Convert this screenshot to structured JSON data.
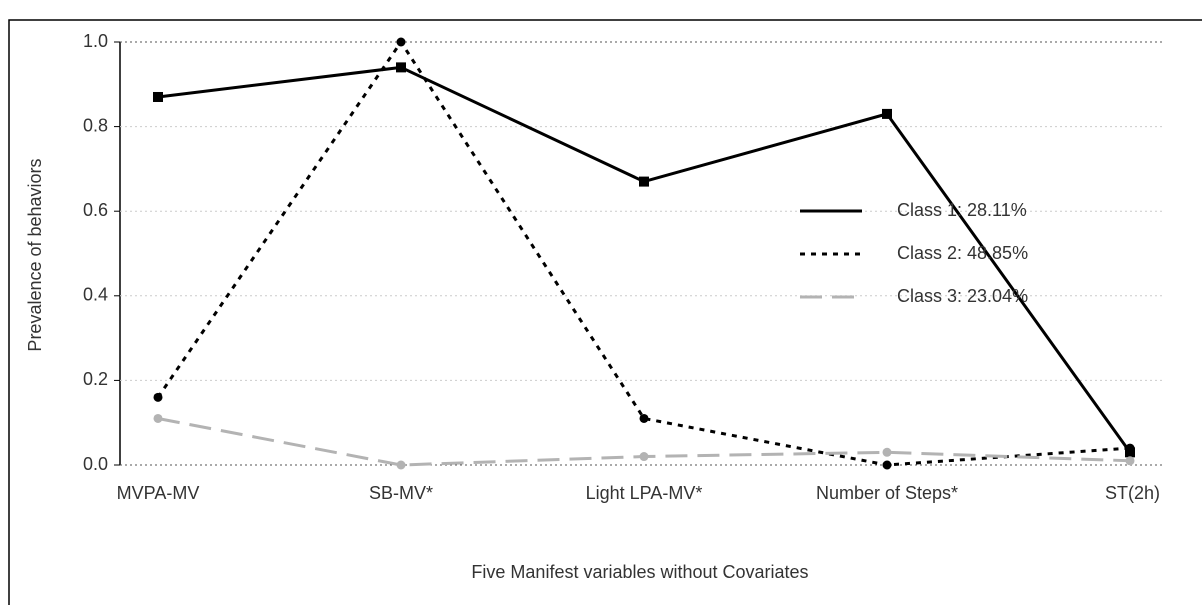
{
  "chart_data": {
    "type": "line",
    "xlabel": "Five Manifest variables without Covariates",
    "ylabel": "Prevalence of behaviors",
    "categories": [
      "MVPA-MV",
      "SB-MV*",
      "Light LPA-MV*",
      "Number of Steps*",
      "ST(2h)"
    ],
    "series": [
      {
        "name": "Class 1: 28.11%",
        "color": "#000000",
        "style": "solid",
        "marker": "square",
        "values": [
          0.87,
          0.94,
          0.67,
          0.83,
          0.03
        ]
      },
      {
        "name": "Class 2: 48.85%",
        "color": "#000000",
        "style": "dotted",
        "marker": "circle",
        "values": [
          0.16,
          1.0,
          0.11,
          0.0,
          0.04
        ]
      },
      {
        "name": "Class 3: 23.04%",
        "color": "#b3b3b3",
        "style": "dashed",
        "marker": "circle",
        "values": [
          0.11,
          0.0,
          0.02,
          0.03,
          0.01
        ]
      }
    ],
    "ylim": [
      0,
      1
    ],
    "yticks": [
      {
        "value": 0,
        "label": "0.0"
      },
      {
        "value": 0.2,
        "label": "0.2"
      },
      {
        "value": 0.4,
        "label": "0.4"
      },
      {
        "value": 0.6,
        "label": "0.6"
      },
      {
        "value": 0.8,
        "label": "0.8"
      },
      {
        "value": 1,
        "label": "1.0"
      }
    ],
    "grid": true
  }
}
